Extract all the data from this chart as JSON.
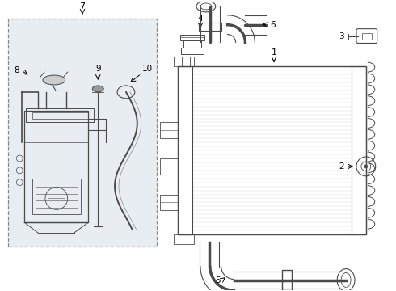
{
  "bg_color": "#ffffff",
  "line_color": "#4a4a4a",
  "box_bg": "#e8edf2",
  "fig_width": 4.9,
  "fig_height": 3.6,
  "dpi": 100
}
